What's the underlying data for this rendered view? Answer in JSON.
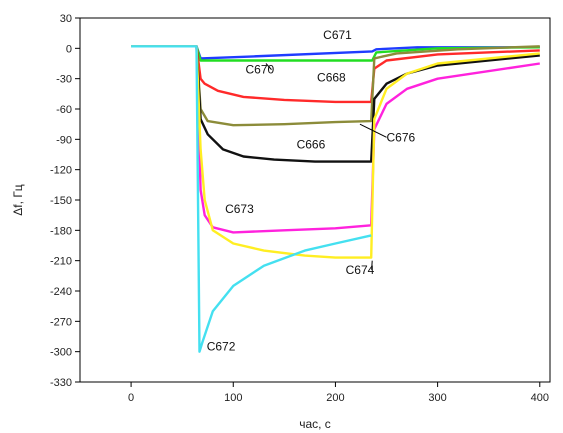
{
  "chart_data": {
    "type": "line",
    "title": "",
    "xlabel": "час, с",
    "ylabel": "Δf, Гц",
    "xlim": [
      -50,
      410
    ],
    "ylim": [
      -330,
      30
    ],
    "xticks": [
      0,
      100,
      200,
      300,
      400
    ],
    "yticks": [
      30,
      0,
      -30,
      -60,
      -90,
      -120,
      -150,
      -180,
      -210,
      -240,
      -270,
      -300,
      -330
    ],
    "grid": false,
    "legend": "none",
    "series": [
      {
        "name": "C671",
        "color": "#1f3cff",
        "x": [
          0,
          64,
          68,
          120,
          236,
          240,
          280,
          400
        ],
        "y": [
          2,
          2,
          -10,
          -8,
          -3,
          -1,
          1,
          1
        ]
      },
      {
        "name": "C670",
        "color": "#22dd22",
        "x": [
          0,
          64,
          68,
          150,
          236,
          240,
          300,
          400
        ],
        "y": [
          2,
          2,
          -12,
          -12,
          -12,
          -4,
          0,
          1
        ]
      },
      {
        "name": "C668",
        "color": "#ff2a2a",
        "x": [
          0,
          64,
          68,
          72,
          85,
          110,
          150,
          200,
          235,
          238,
          250,
          300,
          400
        ],
        "y": [
          2,
          2,
          -30,
          -35,
          -42,
          -48,
          -51,
          -53,
          -53,
          -20,
          -12,
          -6,
          -2
        ]
      },
      {
        "name": "C676",
        "color": "#8c8c3a",
        "x": [
          0,
          64,
          68,
          75,
          100,
          150,
          200,
          235,
          238,
          260,
          320,
          400
        ],
        "y": [
          2,
          2,
          -60,
          -72,
          -76,
          -75,
          -73,
          -72,
          -10,
          -5,
          -1,
          2
        ]
      },
      {
        "name": "C666",
        "color": "#111111",
        "x": [
          0,
          64,
          68,
          75,
          90,
          110,
          140,
          180,
          235,
          238,
          250,
          270,
          300,
          400
        ],
        "y": [
          2,
          2,
          -70,
          -85,
          -100,
          -107,
          -110,
          -112,
          -112,
          -50,
          -35,
          -25,
          -17,
          -7
        ]
      },
      {
        "name": "C673",
        "color": "#ff22dd",
        "x": [
          0,
          64,
          68,
          72,
          80,
          100,
          150,
          200,
          235,
          238,
          250,
          270,
          300,
          400
        ],
        "y": [
          2,
          2,
          -140,
          -165,
          -177,
          -182,
          -180,
          -178,
          -175,
          -80,
          -55,
          -40,
          -30,
          -15
        ]
      },
      {
        "name": "C674",
        "color": "#ffee22",
        "x": [
          0,
          64,
          68,
          72,
          80,
          100,
          130,
          170,
          200,
          235,
          238,
          250,
          270,
          300,
          400
        ],
        "y": [
          2,
          2,
          -100,
          -150,
          -180,
          -193,
          -200,
          -205,
          -207,
          -207,
          -70,
          -40,
          -25,
          -15,
          -5
        ]
      },
      {
        "name": "C672",
        "color": "#44e0f0",
        "x": [
          0,
          64,
          67,
          70,
          80,
          100,
          130,
          170,
          200,
          235
        ],
        "y": [
          2,
          2,
          -300,
          -290,
          -260,
          -235,
          -215,
          -200,
          -193,
          -185
        ]
      }
    ],
    "annotations": [
      {
        "text": "C671",
        "x": 188,
        "y": 9,
        "arrow": false
      },
      {
        "text": "C670",
        "x": 112,
        "y": -25,
        "arrow": true,
        "to": [
          132,
          -15
        ]
      },
      {
        "text": "C668",
        "x": 182,
        "y": -33,
        "arrow": false
      },
      {
        "text": "C676",
        "x": 250,
        "y": -92,
        "arrow": true,
        "to": [
          224,
          -75
        ]
      },
      {
        "text": "C666",
        "x": 162,
        "y": -99,
        "arrow": false
      },
      {
        "text": "C673",
        "x": 92,
        "y": -163,
        "arrow": false
      },
      {
        "text": "C674",
        "x": 210,
        "y": -223,
        "arrow": true,
        "to": [
          236,
          -210
        ]
      },
      {
        "text": "C672",
        "x": 74,
        "y": -299,
        "arrow": false
      }
    ]
  }
}
